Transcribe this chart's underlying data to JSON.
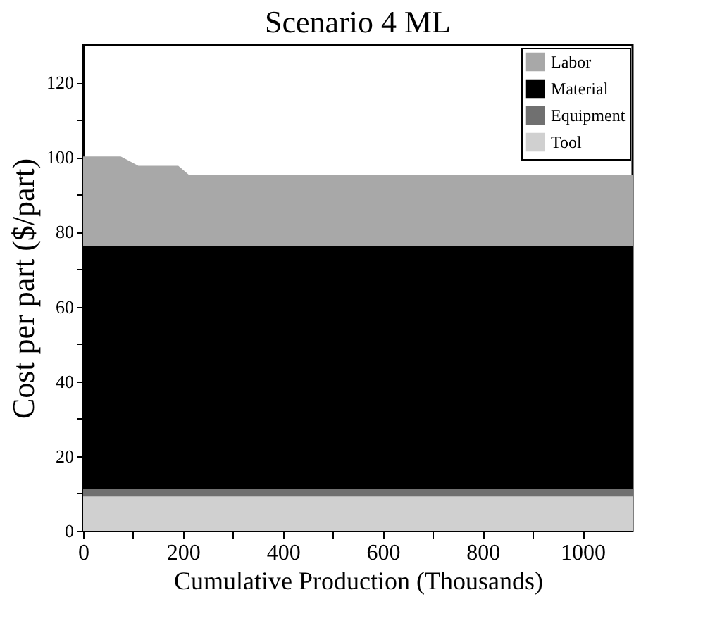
{
  "chart_data": {
    "type": "area",
    "title": "Scenario 4 ML",
    "xlabel": "Cumulative Production (Thousands)",
    "ylabel": "Cost per part ($/part)",
    "x": [
      0,
      75,
      110,
      190,
      212,
      1100
    ],
    "stacked": true,
    "series": [
      {
        "name": "Tool",
        "color": "#d0d0d0",
        "values": [
          9,
          9,
          9,
          9,
          9,
          9
        ]
      },
      {
        "name": "Equipment",
        "color": "#707070",
        "values": [
          2,
          2,
          2,
          2,
          2,
          2
        ]
      },
      {
        "name": "Material",
        "color": "#000000",
        "values": [
          65,
          65,
          65,
          65,
          65,
          65
        ]
      },
      {
        "name": "Labor",
        "color": "#a8a8a8",
        "values": [
          24,
          24,
          21.5,
          21.5,
          19,
          19
        ]
      }
    ],
    "xlim": [
      0,
      1100
    ],
    "ylim": [
      0,
      130
    ],
    "xticks": [
      0,
      {
        "value": 100,
        "label": null
      },
      200,
      {
        "value": 300,
        "label": null
      },
      400,
      {
        "value": 500,
        "label": null
      },
      600,
      {
        "value": 700,
        "label": null
      },
      800,
      {
        "value": 900,
        "label": null
      },
      1000
    ],
    "yticks": [
      0,
      {
        "value": 10,
        "label": null
      },
      20,
      {
        "value": 30,
        "label": null
      },
      40,
      {
        "value": 50,
        "label": null
      },
      60,
      {
        "value": 70,
        "label": null
      },
      80,
      {
        "value": 90,
        "label": null
      },
      100,
      {
        "value": 110,
        "label": null
      },
      120
    ],
    "legend": "top right",
    "grid": false
  }
}
